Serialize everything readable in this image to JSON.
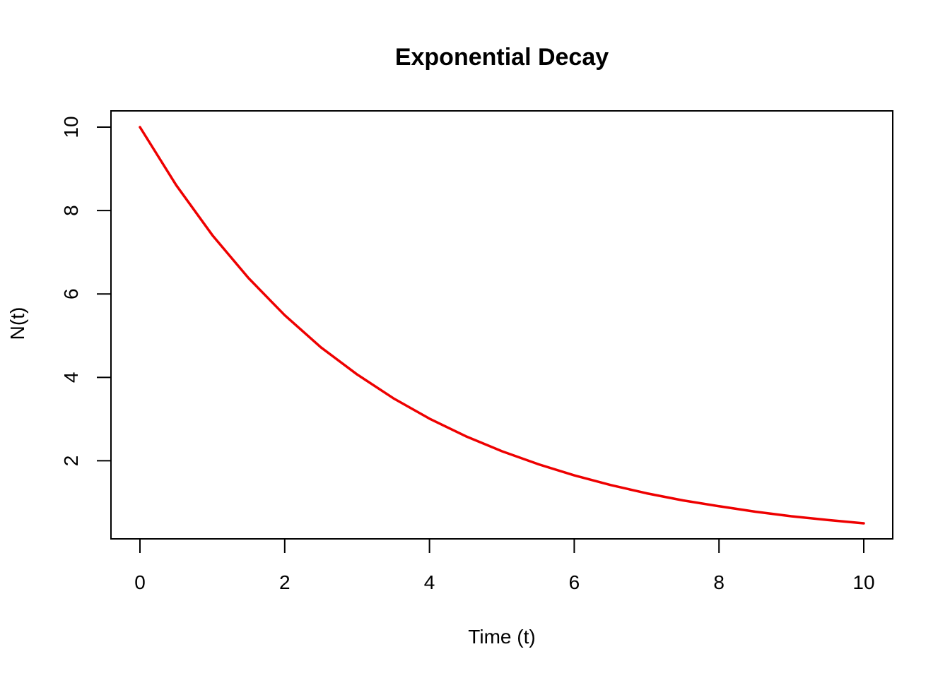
{
  "chart_data": {
    "type": "line",
    "title": "Exponential Decay",
    "xlabel": "Time (t)",
    "ylabel": "N(t)",
    "xlim": [
      0,
      10
    ],
    "ylim": [
      0.5,
      10
    ],
    "x_ticks": [
      0,
      2,
      4,
      6,
      8,
      10
    ],
    "y_ticks": [
      2,
      4,
      6,
      8,
      10
    ],
    "grid": false,
    "line_color": "#ee0000",
    "axis_color": "#000000",
    "series": [
      {
        "x": [
          0,
          0.5,
          1,
          1.5,
          2,
          2.5,
          3,
          3.5,
          4,
          4.5,
          5,
          5.5,
          6,
          6.5,
          7,
          7.5,
          8,
          8.5,
          9,
          9.5,
          10
        ],
        "y": [
          10,
          8.61,
          7.41,
          6.38,
          5.49,
          4.72,
          4.07,
          3.5,
          3.01,
          2.59,
          2.23,
          1.92,
          1.65,
          1.42,
          1.22,
          1.05,
          0.91,
          0.78,
          0.67,
          0.58,
          0.5
        ]
      }
    ]
  }
}
